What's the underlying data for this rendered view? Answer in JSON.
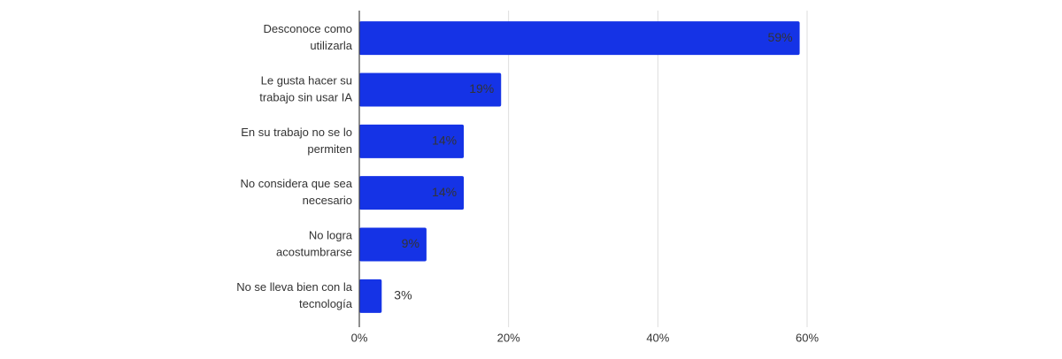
{
  "chart_data": {
    "type": "bar",
    "orientation": "horizontal",
    "categories": [
      [
        "Desconoce como",
        "utilizarla"
      ],
      [
        "Le gusta hacer su",
        "trabajo sin usar IA"
      ],
      [
        "En su trabajo no se lo",
        "permiten"
      ],
      [
        "No considera que sea",
        "necesario"
      ],
      [
        "No logra",
        "acostumbrarse"
      ],
      [
        "No se lleva bien con la",
        "tecnología"
      ]
    ],
    "values": [
      59,
      19,
      14,
      14,
      9,
      3
    ],
    "value_labels": [
      "59%",
      "19%",
      "14%",
      "14%",
      "9%",
      "3%"
    ],
    "color": "#1533e6",
    "xlim": [
      0,
      60
    ],
    "xticks": [
      {
        "value": 0,
        "label": "0%"
      },
      {
        "value": 20,
        "label": "20%"
      },
      {
        "value": 40,
        "label": "40%"
      },
      {
        "value": 60,
        "label": "60%"
      }
    ],
    "grid": true
  }
}
